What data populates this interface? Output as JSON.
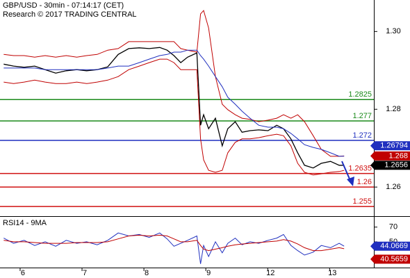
{
  "chart_data": [
    {
      "type": "line",
      "title": "GBP/USD - 30min - 07:14:17 (CET)",
      "subtitle": "Research © 2017 TRADING CENTRAL",
      "xlim": [
        -0.37,
        5.67
      ],
      "x": [
        -0.31,
        -0.15,
        0.02,
        0.19,
        0.36,
        0.53,
        0.7,
        0.87,
        1.03,
        1.2,
        1.37,
        1.54,
        1.71,
        1.88,
        2.04,
        2.21,
        2.33,
        2.44,
        2.55,
        2.66,
        2.81,
        2.87,
        2.92,
        3.0,
        3.11,
        3.22,
        3.31,
        3.43,
        3.54,
        3.67,
        3.81,
        3.96,
        4.1,
        4.21,
        4.33,
        4.44,
        4.55,
        4.69,
        4.82,
        4.97,
        5.11,
        5.19
      ],
      "ylim": [
        1.2527,
        1.3081
      ],
      "yticks": [
        {
          "value": 1.3,
          "label": "1.30"
        },
        1.28,
        1.26
      ],
      "series": [
        {
          "color": "#000000",
          "width": 1.3,
          "last_label": true,
          "values": [
            1.2916,
            1.2911,
            1.2908,
            1.2911,
            1.2902,
            1.2893,
            1.2899,
            1.2902,
            1.2899,
            1.2902,
            1.2909,
            1.2941,
            1.2956,
            1.2958,
            1.2956,
            1.2959,
            1.2952,
            1.2938,
            1.292,
            1.2934,
            1.2945,
            1.2759,
            1.2786,
            1.275,
            1.2777,
            1.2706,
            1.275,
            1.2768,
            1.2741,
            1.2745,
            1.2747,
            1.2745,
            1.2759,
            1.275,
            1.2724,
            1.2688,
            1.2656,
            1.2649,
            1.2661,
            1.2666,
            1.2656,
            1.2656
          ]
        },
        {
          "color": "#c00000",
          "width": 1,
          "last_label": true,
          "values": [
            1.2941,
            1.2938,
            1.2938,
            1.2934,
            1.2938,
            1.2934,
            1.2938,
            1.2934,
            1.2938,
            1.2941,
            1.2952,
            1.2956,
            1.2974,
            1.2974,
            1.2974,
            1.2974,
            1.2974,
            1.2974,
            1.2956,
            1.2952,
            1.2947,
            1.3045,
            1.3054,
            1.3009,
            1.2884,
            1.2813,
            1.2799,
            1.2786,
            1.2777,
            1.2774,
            1.2768,
            1.2772,
            1.2777,
            1.2786,
            1.2777,
            1.2786,
            1.2768,
            1.2732,
            1.2697,
            1.2679,
            1.2679,
            1.268
          ]
        },
        {
          "color": "#c00000",
          "width": 1,
          "values": [
            1.287,
            1.2866,
            1.287,
            1.2875,
            1.287,
            1.2866,
            1.2866,
            1.287,
            1.2866,
            1.287,
            1.2875,
            1.2884,
            1.2902,
            1.2911,
            1.292,
            1.2929,
            1.2929,
            1.292,
            1.2902,
            1.2902,
            1.2902,
            1.2724,
            1.267,
            1.2643,
            1.2638,
            1.2643,
            1.2688,
            1.2715,
            1.2724,
            1.2724,
            1.2727,
            1.2732,
            1.2736,
            1.2732,
            1.2706,
            1.2661,
            1.2638,
            1.2631,
            1.2634,
            1.2638,
            1.264,
            1.2643
          ]
        },
        {
          "color": "#1f2fbf",
          "width": 1,
          "last_label": true,
          "values": [
            1.2906,
            1.2906,
            1.2906,
            1.2906,
            1.2902,
            1.2902,
            1.2902,
            1.2902,
            1.2902,
            1.2902,
            1.2906,
            1.2911,
            1.2911,
            1.292,
            1.2929,
            1.2938,
            1.2941,
            1.2947,
            1.2947,
            1.2952,
            1.2952,
            1.2938,
            1.2929,
            1.2911,
            1.2884,
            1.2858,
            1.2831,
            1.2813,
            1.2795,
            1.2777,
            1.2759,
            1.2754,
            1.2754,
            1.275,
            1.2738,
            1.2724,
            1.2709,
            1.2702,
            1.2697,
            1.2688,
            1.2679,
            1.26794
          ]
        }
      ],
      "levels": [
        {
          "value": 1.2825,
          "color": "#1a8a1a"
        },
        {
          "value": 1.277,
          "color": "#1a8a1a"
        },
        {
          "value": 1.272,
          "color": "#1f2fbf"
        },
        {
          "value": 1.2635,
          "color": "#d01010"
        },
        {
          "value": 1.26,
          "color": "#d01010"
        },
        {
          "value": 1.255,
          "color": "#d01010"
        }
      ]
    },
    {
      "type": "line",
      "title": "RSI14 - 9MA",
      "xlim": [
        -0.37,
        5.67
      ],
      "x": [
        -0.31,
        -0.15,
        0.02,
        0.19,
        0.36,
        0.53,
        0.7,
        0.87,
        1.03,
        1.2,
        1.37,
        1.54,
        1.71,
        1.88,
        2.04,
        2.21,
        2.33,
        2.44,
        2.55,
        2.66,
        2.81,
        2.87,
        2.92,
        3.0,
        3.11,
        3.22,
        3.31,
        3.43,
        3.54,
        3.67,
        3.81,
        3.96,
        4.1,
        4.21,
        4.33,
        4.44,
        4.55,
        4.69,
        4.82,
        4.97,
        5.11,
        5.19
      ],
      "xticks": [
        {
          "value": 0,
          "label": "6"
        },
        {
          "value": 1,
          "label": "7"
        },
        {
          "value": 2,
          "label": "8"
        },
        {
          "value": 3,
          "label": "9"
        },
        {
          "value": 4,
          "label": "12"
        },
        {
          "value": 5,
          "label": "13"
        }
      ],
      "ylim": [
        15,
        83
      ],
      "yticks": [
        70,
        50
      ],
      "series": [
        {
          "color": "#1f2fbf",
          "width": 1,
          "last_label": true,
          "values": [
            55,
            48,
            52,
            45,
            50,
            44,
            52,
            48,
            50,
            46,
            52,
            62,
            58,
            60,
            56,
            62,
            54,
            44,
            48,
            52,
            58,
            20,
            45,
            30,
            50,
            35,
            48,
            55,
            46,
            50,
            48,
            52,
            55,
            60,
            45,
            38,
            32,
            36,
            45,
            42,
            48,
            44.0669
          ]
        },
        {
          "color": "#c00000",
          "width": 1,
          "last_label": true,
          "values": [
            52,
            50,
            50,
            49,
            48,
            48,
            48,
            49,
            49,
            49,
            50,
            54,
            58,
            59,
            58,
            59,
            58,
            54,
            50,
            50,
            52,
            45,
            40,
            38,
            40,
            42,
            44,
            46,
            47,
            48,
            49,
            50,
            51,
            53,
            51,
            47,
            42,
            38,
            38,
            40,
            42,
            40.5659
          ]
        }
      ]
    }
  ]
}
